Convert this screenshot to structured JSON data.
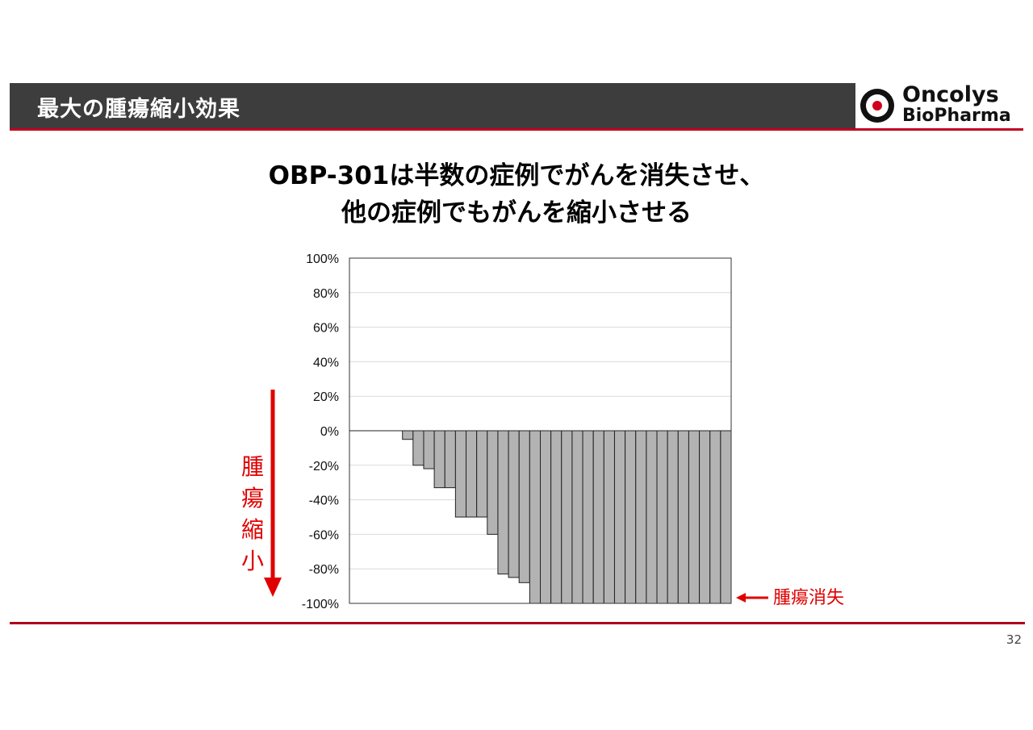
{
  "header": {
    "title": "最大の腫瘍縮小効果",
    "logo_line1": "Oncolys",
    "logo_line2": "BioPharma"
  },
  "headline": {
    "line1": "OBP-301は半数の症例でがんを消失させ、",
    "line2": "他の症例でもがんを縮小させる"
  },
  "annotations": {
    "shrink_label": "腫瘍縮小",
    "vanish_label": "腫瘍消失"
  },
  "page_number": "32",
  "colors": {
    "accent_red": "#e00000",
    "bar_fill": "#b3b3b3",
    "header_bg": "#3d3d3d"
  },
  "chart_data": {
    "type": "bar",
    "title": "",
    "xlabel": "",
    "ylabel": "",
    "ylim": [
      -100,
      100
    ],
    "yticks": [
      100,
      80,
      60,
      40,
      20,
      0,
      -20,
      -40,
      -60,
      -80,
      -100
    ],
    "ytick_labels": [
      "100%",
      "80%",
      "60%",
      "40%",
      "20%",
      "0%",
      "-20%",
      "-40%",
      "-60%",
      "-80%",
      "-100%"
    ],
    "grid": true,
    "values": [
      0,
      0,
      0,
      0,
      0,
      -5,
      -20,
      -22,
      -33,
      -33,
      -50,
      -50,
      -50,
      -60,
      -83,
      -85,
      -88,
      -100,
      -100,
      -100,
      -100,
      -100,
      -100,
      -100,
      -100,
      -100,
      -100,
      -100,
      -100,
      -100,
      -100,
      -100,
      -100,
      -100,
      -100,
      -100
    ]
  }
}
